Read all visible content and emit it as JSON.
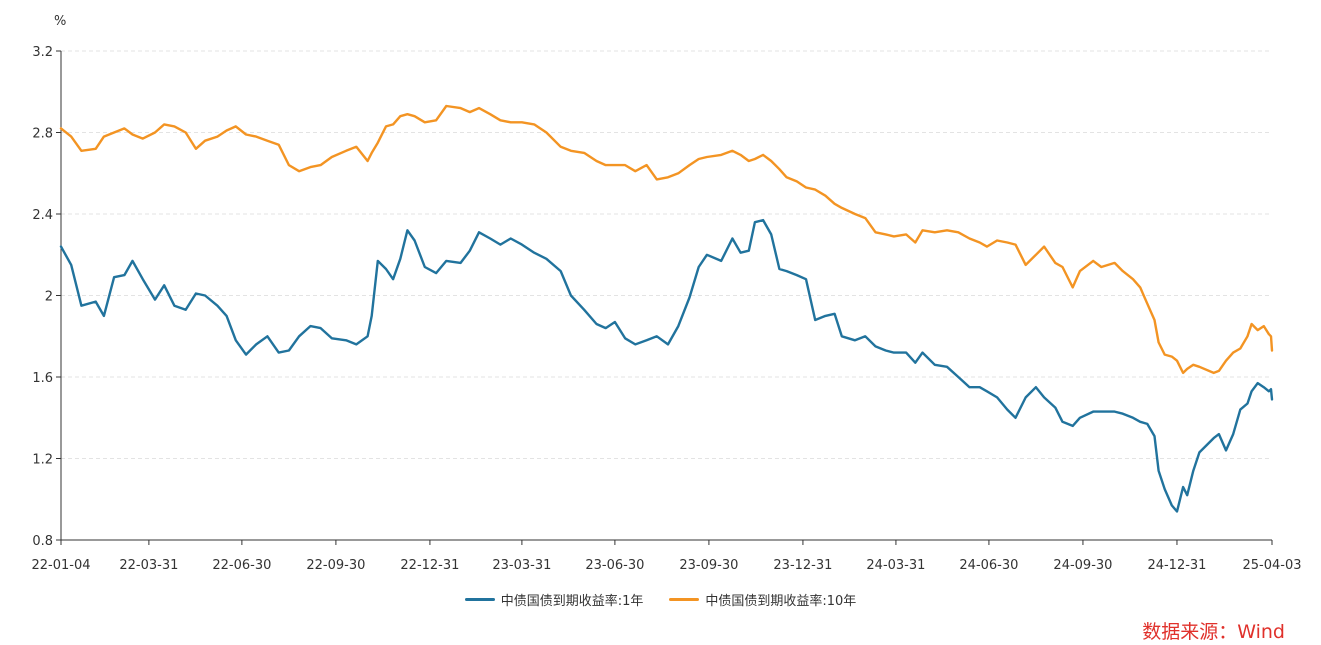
{
  "chart_data": {
    "type": "line",
    "ylabel": "%",
    "ylim": [
      0.8,
      3.2
    ],
    "yticks": [
      "0.8",
      "1.2",
      "1.6",
      "2",
      "2.4",
      "2.8",
      "3.2"
    ],
    "xticks": [
      "22-01-04",
      "22-03-31",
      "22-06-30",
      "22-09-30",
      "22-12-31",
      "23-03-31",
      "23-06-30",
      "23-09-30",
      "23-12-31",
      "24-03-31",
      "24-06-30",
      "24-09-30",
      "24-12-31",
      "25-04-03"
    ],
    "grid": "horizontal dashed",
    "legend_position": "bottom",
    "series": [
      {
        "name": "中债国债到期收益率:1年",
        "color": "#21739d",
        "points": [
          [
            "2022-01-04",
            2.24
          ],
          [
            "2022-01-14",
            2.15
          ],
          [
            "2022-01-24",
            1.95
          ],
          [
            "2022-02-07",
            1.97
          ],
          [
            "2022-02-15",
            1.9
          ],
          [
            "2022-02-25",
            2.09
          ],
          [
            "2022-03-07",
            2.1
          ],
          [
            "2022-03-15",
            2.17
          ],
          [
            "2022-03-25",
            2.08
          ],
          [
            "2022-04-06",
            1.98
          ],
          [
            "2022-04-15",
            2.05
          ],
          [
            "2022-04-25",
            1.95
          ],
          [
            "2022-05-06",
            1.93
          ],
          [
            "2022-05-16",
            2.01
          ],
          [
            "2022-05-25",
            2.0
          ],
          [
            "2022-06-06",
            1.95
          ],
          [
            "2022-06-15",
            1.9
          ],
          [
            "2022-06-24",
            1.78
          ],
          [
            "2022-07-04",
            1.71
          ],
          [
            "2022-07-14",
            1.76
          ],
          [
            "2022-07-25",
            1.8
          ],
          [
            "2022-08-05",
            1.72
          ],
          [
            "2022-08-15",
            1.73
          ],
          [
            "2022-08-25",
            1.8
          ],
          [
            "2022-09-05",
            1.85
          ],
          [
            "2022-09-15",
            1.84
          ],
          [
            "2022-09-26",
            1.79
          ],
          [
            "2022-10-10",
            1.78
          ],
          [
            "2022-10-20",
            1.76
          ],
          [
            "2022-10-31",
            1.8
          ],
          [
            "2022-11-04",
            1.9
          ],
          [
            "2022-11-10",
            2.17
          ],
          [
            "2022-11-18",
            2.13
          ],
          [
            "2022-11-25",
            2.08
          ],
          [
            "2022-12-02",
            2.18
          ],
          [
            "2022-12-09",
            2.32
          ],
          [
            "2022-12-16",
            2.27
          ],
          [
            "2022-12-26",
            2.14
          ],
          [
            "2023-01-06",
            2.11
          ],
          [
            "2023-01-16",
            2.17
          ],
          [
            "2023-01-30",
            2.16
          ],
          [
            "2023-02-08",
            2.22
          ],
          [
            "2023-02-17",
            2.31
          ],
          [
            "2023-02-28",
            2.28
          ],
          [
            "2023-03-10",
            2.25
          ],
          [
            "2023-03-20",
            2.28
          ],
          [
            "2023-03-31",
            2.25
          ],
          [
            "2023-04-12",
            2.21
          ],
          [
            "2023-04-24",
            2.18
          ],
          [
            "2023-05-08",
            2.12
          ],
          [
            "2023-05-18",
            2.0
          ],
          [
            "2023-05-31",
            1.93
          ],
          [
            "2023-06-12",
            1.86
          ],
          [
            "2023-06-21",
            1.84
          ],
          [
            "2023-06-30",
            1.87
          ],
          [
            "2023-07-10",
            1.79
          ],
          [
            "2023-07-20",
            1.76
          ],
          [
            "2023-07-31",
            1.78
          ],
          [
            "2023-08-10",
            1.8
          ],
          [
            "2023-08-21",
            1.76
          ],
          [
            "2023-08-31",
            1.85
          ],
          [
            "2023-09-11",
            1.99
          ],
          [
            "2023-09-20",
            2.14
          ],
          [
            "2023-09-28",
            2.2
          ],
          [
            "2023-10-12",
            2.17
          ],
          [
            "2023-10-23",
            2.28
          ],
          [
            "2023-10-31",
            2.21
          ],
          [
            "2023-11-08",
            2.22
          ],
          [
            "2023-11-14",
            2.36
          ],
          [
            "2023-11-22",
            2.37
          ],
          [
            "2023-11-30",
            2.3
          ],
          [
            "2023-12-08",
            2.13
          ],
          [
            "2023-12-15",
            2.12
          ],
          [
            "2023-12-25",
            2.1
          ],
          [
            "2024-01-03",
            2.08
          ],
          [
            "2024-01-12",
            1.88
          ],
          [
            "2024-01-22",
            1.9
          ],
          [
            "2024-01-31",
            1.91
          ],
          [
            "2024-02-07",
            1.8
          ],
          [
            "2024-02-20",
            1.78
          ],
          [
            "2024-03-01",
            1.8
          ],
          [
            "2024-03-11",
            1.75
          ],
          [
            "2024-03-21",
            1.73
          ],
          [
            "2024-03-29",
            1.72
          ],
          [
            "2024-04-10",
            1.72
          ],
          [
            "2024-04-19",
            1.67
          ],
          [
            "2024-04-26",
            1.72
          ],
          [
            "2024-05-08",
            1.66
          ],
          [
            "2024-05-20",
            1.65
          ],
          [
            "2024-05-31",
            1.6
          ],
          [
            "2024-06-11",
            1.55
          ],
          [
            "2024-06-21",
            1.55
          ],
          [
            "2024-06-28",
            1.53
          ],
          [
            "2024-07-08",
            1.5
          ],
          [
            "2024-07-18",
            1.44
          ],
          [
            "2024-07-26",
            1.4
          ],
          [
            "2024-08-05",
            1.5
          ],
          [
            "2024-08-15",
            1.55
          ],
          [
            "2024-08-23",
            1.5
          ],
          [
            "2024-09-03",
            1.45
          ],
          [
            "2024-09-10",
            1.38
          ],
          [
            "2024-09-20",
            1.36
          ],
          [
            "2024-09-27",
            1.4
          ],
          [
            "2024-10-10",
            1.43
          ],
          [
            "2024-10-18",
            1.43
          ],
          [
            "2024-10-31",
            1.43
          ],
          [
            "2024-11-08",
            1.42
          ],
          [
            "2024-11-18",
            1.4
          ],
          [
            "2024-11-25",
            1.38
          ],
          [
            "2024-12-02",
            1.37
          ],
          [
            "2024-12-09",
            1.31
          ],
          [
            "2024-12-13",
            1.14
          ],
          [
            "2024-12-19",
            1.05
          ],
          [
            "2024-12-26",
            0.97
          ],
          [
            "2024-12-31",
            0.94
          ],
          [
            "2025-01-06",
            1.06
          ],
          [
            "2025-01-10",
            1.02
          ],
          [
            "2025-01-16",
            1.14
          ],
          [
            "2025-01-22",
            1.23
          ],
          [
            "2025-02-05",
            1.3
          ],
          [
            "2025-02-10",
            1.32
          ],
          [
            "2025-02-17",
            1.24
          ],
          [
            "2025-02-24",
            1.32
          ],
          [
            "2025-03-03",
            1.44
          ],
          [
            "2025-03-10",
            1.47
          ],
          [
            "2025-03-14",
            1.53
          ],
          [
            "2025-03-20",
            1.57
          ],
          [
            "2025-03-26",
            1.55
          ],
          [
            "2025-03-31",
            1.53
          ],
          [
            "2025-04-02",
            1.54
          ],
          [
            "2025-04-03",
            1.49
          ]
        ]
      },
      {
        "name": "中债国债到期收益率:10年",
        "color": "#f39423",
        "points": [
          [
            "2022-01-04",
            2.82
          ],
          [
            "2022-01-14",
            2.78
          ],
          [
            "2022-01-24",
            2.71
          ],
          [
            "2022-02-07",
            2.72
          ],
          [
            "2022-02-15",
            2.78
          ],
          [
            "2022-02-25",
            2.8
          ],
          [
            "2022-03-07",
            2.82
          ],
          [
            "2022-03-15",
            2.79
          ],
          [
            "2022-03-25",
            2.77
          ],
          [
            "2022-04-06",
            2.8
          ],
          [
            "2022-04-15",
            2.84
          ],
          [
            "2022-04-25",
            2.83
          ],
          [
            "2022-05-06",
            2.8
          ],
          [
            "2022-05-16",
            2.72
          ],
          [
            "2022-05-25",
            2.76
          ],
          [
            "2022-06-06",
            2.78
          ],
          [
            "2022-06-15",
            2.81
          ],
          [
            "2022-06-24",
            2.83
          ],
          [
            "2022-07-04",
            2.79
          ],
          [
            "2022-07-14",
            2.78
          ],
          [
            "2022-07-25",
            2.76
          ],
          [
            "2022-08-05",
            2.74
          ],
          [
            "2022-08-15",
            2.64
          ],
          [
            "2022-08-25",
            2.61
          ],
          [
            "2022-09-05",
            2.63
          ],
          [
            "2022-09-15",
            2.64
          ],
          [
            "2022-09-26",
            2.68
          ],
          [
            "2022-10-10",
            2.71
          ],
          [
            "2022-10-20",
            2.73
          ],
          [
            "2022-10-31",
            2.66
          ],
          [
            "2022-11-04",
            2.7
          ],
          [
            "2022-11-10",
            2.75
          ],
          [
            "2022-11-18",
            2.83
          ],
          [
            "2022-11-25",
            2.84
          ],
          [
            "2022-12-02",
            2.88
          ],
          [
            "2022-12-09",
            2.89
          ],
          [
            "2022-12-16",
            2.88
          ],
          [
            "2022-12-26",
            2.85
          ],
          [
            "2023-01-06",
            2.86
          ],
          [
            "2023-01-16",
            2.93
          ],
          [
            "2023-01-30",
            2.92
          ],
          [
            "2023-02-08",
            2.9
          ],
          [
            "2023-02-17",
            2.92
          ],
          [
            "2023-02-28",
            2.89
          ],
          [
            "2023-03-10",
            2.86
          ],
          [
            "2023-03-20",
            2.85
          ],
          [
            "2023-03-31",
            2.85
          ],
          [
            "2023-04-12",
            2.84
          ],
          [
            "2023-04-24",
            2.8
          ],
          [
            "2023-05-08",
            2.73
          ],
          [
            "2023-05-18",
            2.71
          ],
          [
            "2023-05-31",
            2.7
          ],
          [
            "2023-06-12",
            2.66
          ],
          [
            "2023-06-21",
            2.64
          ],
          [
            "2023-06-30",
            2.64
          ],
          [
            "2023-07-10",
            2.64
          ],
          [
            "2023-07-20",
            2.61
          ],
          [
            "2023-07-31",
            2.64
          ],
          [
            "2023-08-10",
            2.57
          ],
          [
            "2023-08-21",
            2.58
          ],
          [
            "2023-08-31",
            2.6
          ],
          [
            "2023-09-11",
            2.64
          ],
          [
            "2023-09-20",
            2.67
          ],
          [
            "2023-09-28",
            2.68
          ],
          [
            "2023-10-12",
            2.69
          ],
          [
            "2023-10-23",
            2.71
          ],
          [
            "2023-10-31",
            2.69
          ],
          [
            "2023-11-08",
            2.66
          ],
          [
            "2023-11-14",
            2.67
          ],
          [
            "2023-11-22",
            2.69
          ],
          [
            "2023-11-30",
            2.66
          ],
          [
            "2023-12-08",
            2.62
          ],
          [
            "2023-12-15",
            2.58
          ],
          [
            "2023-12-25",
            2.56
          ],
          [
            "2024-01-03",
            2.53
          ],
          [
            "2024-01-12",
            2.52
          ],
          [
            "2024-01-22",
            2.49
          ],
          [
            "2024-01-31",
            2.45
          ],
          [
            "2024-02-07",
            2.43
          ],
          [
            "2024-02-20",
            2.4
          ],
          [
            "2024-03-01",
            2.38
          ],
          [
            "2024-03-11",
            2.31
          ],
          [
            "2024-03-21",
            2.3
          ],
          [
            "2024-03-29",
            2.29
          ],
          [
            "2024-04-10",
            2.3
          ],
          [
            "2024-04-19",
            2.26
          ],
          [
            "2024-04-26",
            2.32
          ],
          [
            "2024-05-08",
            2.31
          ],
          [
            "2024-05-20",
            2.32
          ],
          [
            "2024-05-31",
            2.31
          ],
          [
            "2024-06-11",
            2.28
          ],
          [
            "2024-06-21",
            2.26
          ],
          [
            "2024-06-28",
            2.24
          ],
          [
            "2024-07-08",
            2.27
          ],
          [
            "2024-07-18",
            2.26
          ],
          [
            "2024-07-26",
            2.25
          ],
          [
            "2024-08-05",
            2.15
          ],
          [
            "2024-08-15",
            2.2
          ],
          [
            "2024-08-23",
            2.24
          ],
          [
            "2024-09-03",
            2.16
          ],
          [
            "2024-09-10",
            2.14
          ],
          [
            "2024-09-20",
            2.04
          ],
          [
            "2024-09-27",
            2.12
          ],
          [
            "2024-10-10",
            2.17
          ],
          [
            "2024-10-18",
            2.14
          ],
          [
            "2024-10-31",
            2.16
          ],
          [
            "2024-11-08",
            2.12
          ],
          [
            "2024-11-18",
            2.08
          ],
          [
            "2024-11-25",
            2.04
          ],
          [
            "2024-12-02",
            1.96
          ],
          [
            "2024-12-09",
            1.88
          ],
          [
            "2024-12-13",
            1.77
          ],
          [
            "2024-12-19",
            1.71
          ],
          [
            "2024-12-26",
            1.7
          ],
          [
            "2024-12-31",
            1.68
          ],
          [
            "2025-01-06",
            1.62
          ],
          [
            "2025-01-10",
            1.64
          ],
          [
            "2025-01-16",
            1.66
          ],
          [
            "2025-01-22",
            1.65
          ],
          [
            "2025-02-05",
            1.62
          ],
          [
            "2025-02-10",
            1.63
          ],
          [
            "2025-02-17",
            1.68
          ],
          [
            "2025-02-24",
            1.72
          ],
          [
            "2025-03-03",
            1.74
          ],
          [
            "2025-03-10",
            1.8
          ],
          [
            "2025-03-14",
            1.86
          ],
          [
            "2025-03-20",
            1.83
          ],
          [
            "2025-03-26",
            1.85
          ],
          [
            "2025-03-31",
            1.81
          ],
          [
            "2025-04-02",
            1.8
          ],
          [
            "2025-04-03",
            1.73
          ]
        ]
      }
    ]
  },
  "source_note": "数据来源：Wind",
  "colors": {
    "axis": "#333333",
    "grid": "#e3e3e3",
    "source": "#e0312b"
  }
}
